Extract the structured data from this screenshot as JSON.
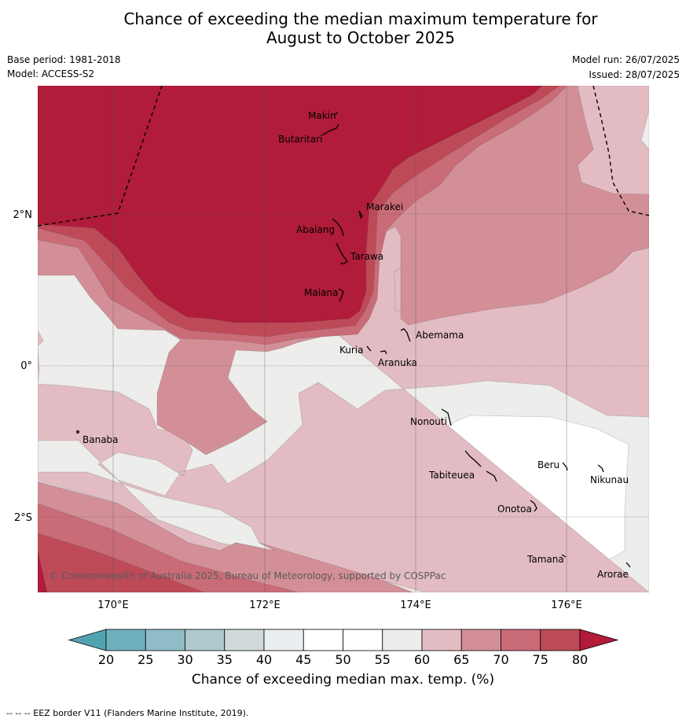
{
  "title_line1": "Chance of exceeding the median maximum temperature for",
  "title_line2": "August to October 2025",
  "base_period": "Base period: 1981-2018",
  "model": "Model: ACCESS-S2",
  "model_run": "Model run: 26/07/2025",
  "issued": "Issued: 28/07/2025",
  "lat_labels": [
    "2°N",
    "0°",
    "2°S"
  ],
  "lon_labels": [
    "170°E",
    "172°E",
    "174°E",
    "176°E"
  ],
  "places": {
    "makin": "Makin",
    "butaritari": "Butaritari",
    "marakei": "Marakei",
    "abaiang": "Abaiang",
    "tarawa": "Tarawa",
    "maiana": "Maiana",
    "abemama": "Abemama",
    "kuria": "Kuria",
    "aranuka": "Aranuka",
    "banaba": "Banaba",
    "nonouti": "Nonouti",
    "tabiteuea": "Tabiteuea",
    "beru": "Beru",
    "nikunau": "Nikunau",
    "onotoa": "Onotoa",
    "tamana": "Tamana",
    "arorae": "Arorae"
  },
  "copyright": "© Commonwealth of Australia 2025, Bureau of Meteorology, supported by COSPPac",
  "colorbar": {
    "ticks": [
      "20",
      "25",
      "30",
      "35",
      "40",
      "45",
      "50",
      "55",
      "60",
      "65",
      "70",
      "75",
      "80"
    ],
    "colors": [
      "#4fa3b1",
      "#6eb0bd",
      "#8fbcc6",
      "#adc9ce",
      "#d2d9dc",
      "#e9eef1",
      "#ffffff",
      "#ffffff",
      "#ededeb",
      "#e2bcc2",
      "#d38f98",
      "#c96c77",
      "#be4a58",
      "#b01c39"
    ],
    "label": "Chance of exceeding median max. temp. (%)"
  },
  "map_colors": {
    "c55_60": "#ededeb",
    "c60_65": "#e2bcc2",
    "c65_70": "#d38f98",
    "c70_75": "#c96c77",
    "c75_80": "#be4a58",
    "c80": "#b01c39"
  },
  "footer": "--  --  -- EEZ border V11 (Flanders Marine Institute, 2019)."
}
